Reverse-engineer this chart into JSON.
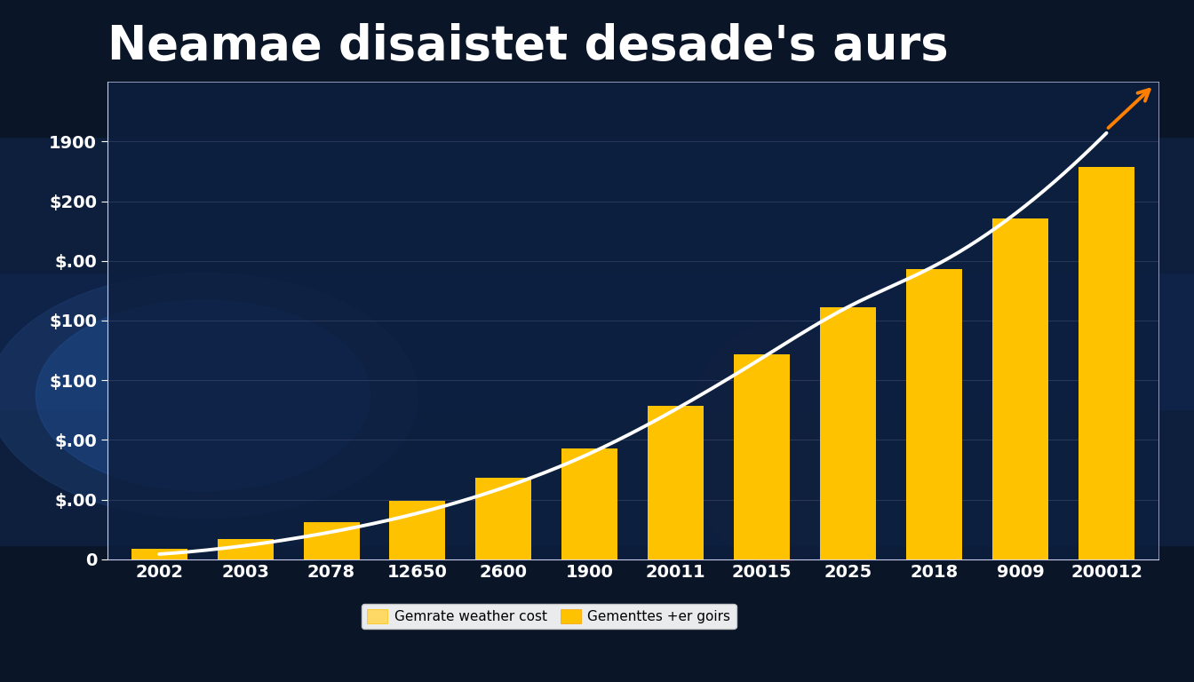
{
  "title": "Neamae disaistet desade's aurs",
  "categories": [
    "2002",
    "2003",
    "2078",
    "12650",
    "2600",
    "1900",
    "20011",
    "20015",
    "2025",
    "2018",
    "9009",
    "200012"
  ],
  "bar_values": [
    6,
    12,
    22,
    34,
    48,
    65,
    90,
    120,
    148,
    170,
    200,
    230
  ],
  "line_values": [
    3,
    8,
    16,
    27,
    42,
    62,
    88,
    118,
    148,
    172,
    205,
    250
  ],
  "bar_color": "#FFC200",
  "line_color": "#FFFFFF",
  "arrow_color": "#FF8000",
  "background_color": "#0d1f3c",
  "title_color": "#FFFFFF",
  "ytick_labels": [
    "0",
    "$.00",
    "$.00",
    "$100",
    "$100",
    "$.00",
    "$200",
    "1900"
  ],
  "ytick_values": [
    0,
    35,
    70,
    105,
    140,
    175,
    210,
    245
  ],
  "legend_label1": "Gemrate weather cost",
  "legend_label2": "Gementtes +er goirs",
  "ylim": [
    0,
    280
  ],
  "title_fontsize": 38,
  "tick_label_fontsize": 14,
  "grid_color": "#aaaacc",
  "grid_alpha": 0.25,
  "spine_color": "#ccccee"
}
